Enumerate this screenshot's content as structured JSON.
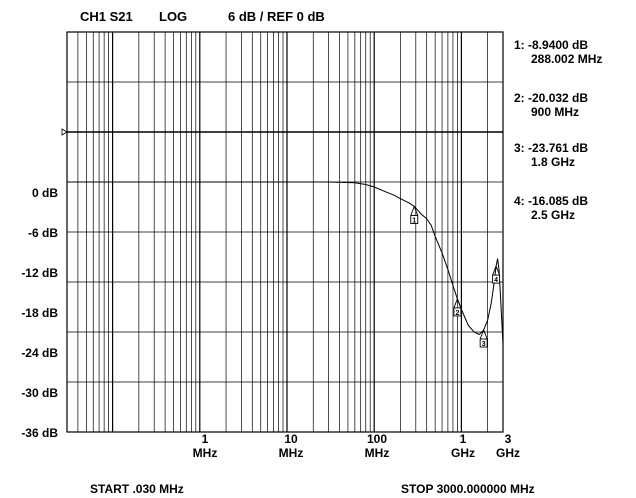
{
  "header": {
    "channel": "CH1 S21",
    "format": "LOG",
    "scale": "6 dB / REF 0 dB"
  },
  "footer": {
    "start": "START .030 MHz",
    "stop": "STOP 3000.000000 MHz"
  },
  "markers": [
    {
      "label": "1:",
      "value": "-8.9400 dB",
      "freq": "288.002 MHz"
    },
    {
      "label": "2:",
      "value": "-20.032 dB",
      "freq": "900 MHz"
    },
    {
      "label": "3:",
      "value": "-23.761 dB",
      "freq": "1.8 GHz"
    },
    {
      "label": "4:",
      "value": "-16.085 dB",
      "freq": "2.5 GHz"
    }
  ],
  "chart_data": {
    "type": "line",
    "xscale": "log",
    "xlim_mhz": [
      0.03,
      3000
    ],
    "ylim_db": [
      -36,
      12
    ],
    "ref_db": 0,
    "grid": true,
    "y_ticks": [
      {
        "v": 0,
        "label": "0 dB"
      },
      {
        "v": -6,
        "label": "-6 dB"
      },
      {
        "v": -12,
        "label": "-12 dB"
      },
      {
        "v": -18,
        "label": "-18 dB"
      },
      {
        "v": -24,
        "label": "-24 dB"
      },
      {
        "v": -30,
        "label": "-30 dB"
      },
      {
        "v": -36,
        "label": "-36 dB"
      }
    ],
    "x_ticks": [
      {
        "v": 1,
        "num": "1",
        "unit": "MHz"
      },
      {
        "v": 10,
        "num": "10",
        "unit": "MHz"
      },
      {
        "v": 100,
        "num": "100",
        "unit": "MHz"
      },
      {
        "v": 1000,
        "num": "1",
        "unit": "GHz"
      },
      {
        "v": 3000,
        "num": "3",
        "unit": "GHz"
      }
    ],
    "series": [
      {
        "values": [
          [
            0.03,
            -6.0
          ],
          [
            0.1,
            -6.0
          ],
          [
            1,
            -6.0
          ],
          [
            10,
            -6.0
          ],
          [
            30,
            -6.0
          ],
          [
            60,
            -6.1
          ],
          [
            80,
            -6.3
          ],
          [
            100,
            -6.6
          ],
          [
            130,
            -7.1
          ],
          [
            170,
            -7.6
          ],
          [
            200,
            -8.0
          ],
          [
            250,
            -8.5
          ],
          [
            288,
            -8.94
          ],
          [
            350,
            -9.9
          ],
          [
            400,
            -10.4
          ],
          [
            450,
            -11.2
          ],
          [
            500,
            -12.5
          ],
          [
            600,
            -14.5
          ],
          [
            700,
            -16.5
          ],
          [
            800,
            -18.4
          ],
          [
            900,
            -20.03
          ],
          [
            1000,
            -21.3
          ],
          [
            1200,
            -23.2
          ],
          [
            1400,
            -24.0
          ],
          [
            1600,
            -24.3
          ],
          [
            1800,
            -23.76
          ],
          [
            2000,
            -22.6
          ],
          [
            2200,
            -20.5
          ],
          [
            2400,
            -17.8
          ],
          [
            2500,
            -16.09
          ],
          [
            2600,
            -15.2
          ],
          [
            2700,
            -16.5
          ],
          [
            2800,
            -19.5
          ],
          [
            2900,
            -22.5
          ],
          [
            3000,
            -25.5
          ]
        ]
      }
    ],
    "marker_points": [
      {
        "n": "1",
        "x": 288,
        "y": -8.94
      },
      {
        "n": "2",
        "x": 900,
        "y": -20.03
      },
      {
        "n": "3",
        "x": 1800,
        "y": -23.76
      },
      {
        "n": "4",
        "x": 2500,
        "y": -16.09
      }
    ]
  }
}
